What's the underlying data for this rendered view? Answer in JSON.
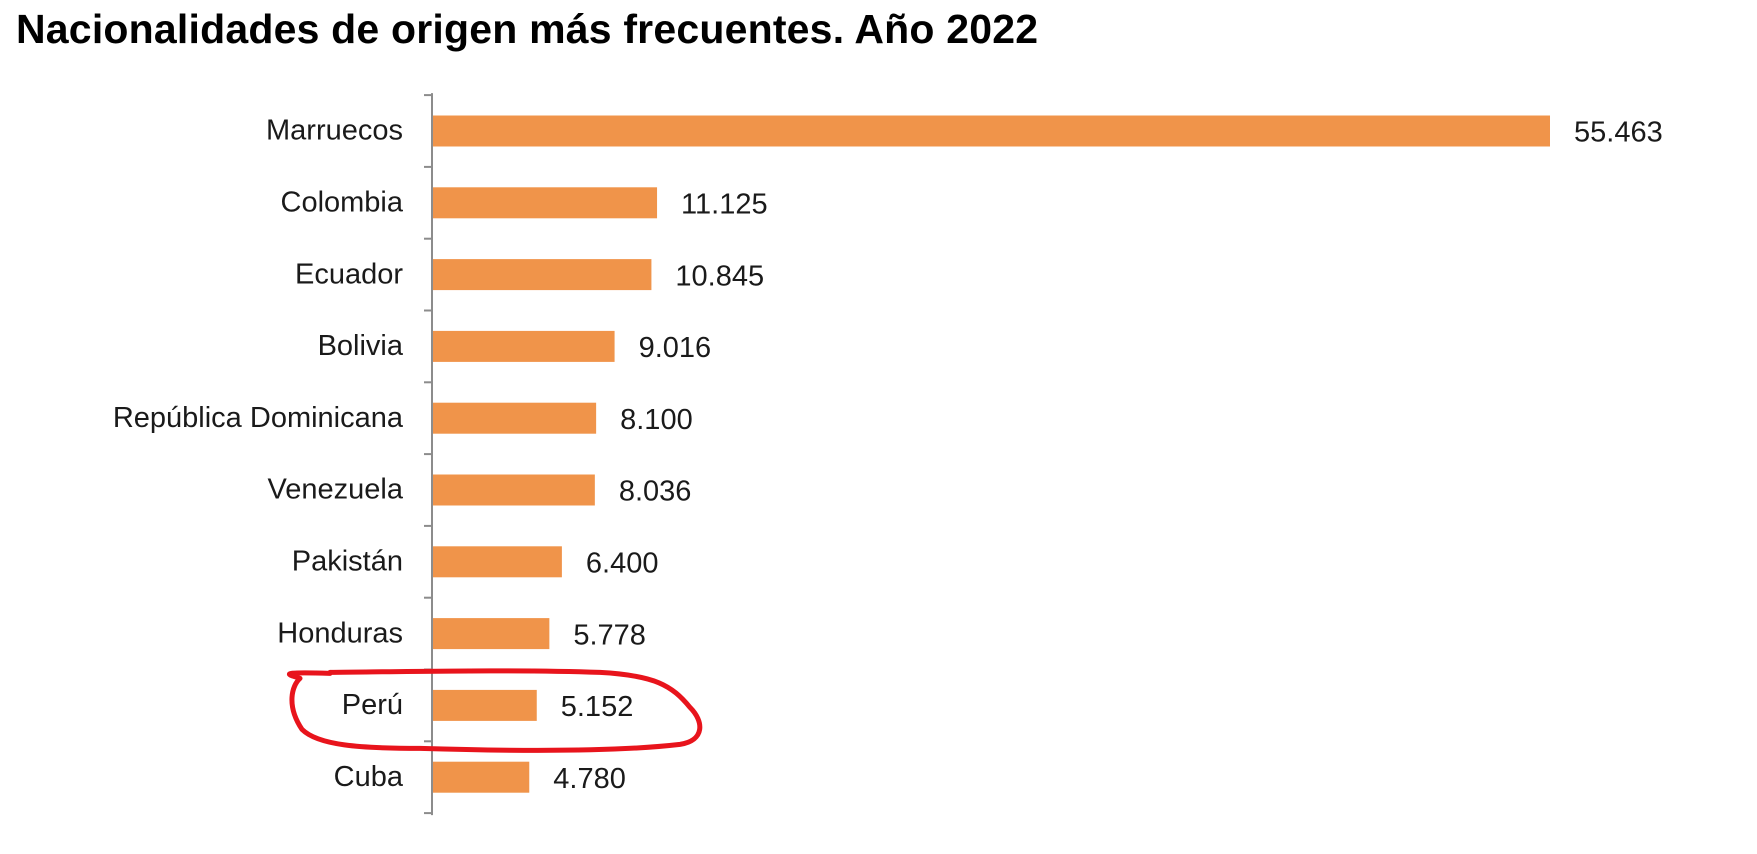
{
  "chart_data": {
    "type": "bar",
    "orientation": "horizontal",
    "title": "Nacionalidades de origen más frecuentes. Año 2022",
    "categories": [
      "Marruecos",
      "Colombia",
      "Ecuador",
      "Bolivia",
      "República Dominicana",
      "Venezuela",
      "Pakistán",
      "Honduras",
      "Perú",
      "Cuba"
    ],
    "values": [
      55463,
      11125,
      10845,
      9016,
      8100,
      8036,
      6400,
      5778,
      5152,
      4780
    ],
    "value_labels": [
      "55.463",
      "11.125",
      "10.845",
      "9.016",
      "8.100",
      "8.036",
      "6.400",
      "5.778",
      "5.152",
      "4.780"
    ],
    "xlim": [
      0,
      55463
    ],
    "grid": false,
    "legend": "none",
    "bar_color": "#F0944A",
    "highlight": {
      "category": "Perú",
      "shape": "hand-drawn ellipse",
      "color": "#E8141C"
    }
  }
}
